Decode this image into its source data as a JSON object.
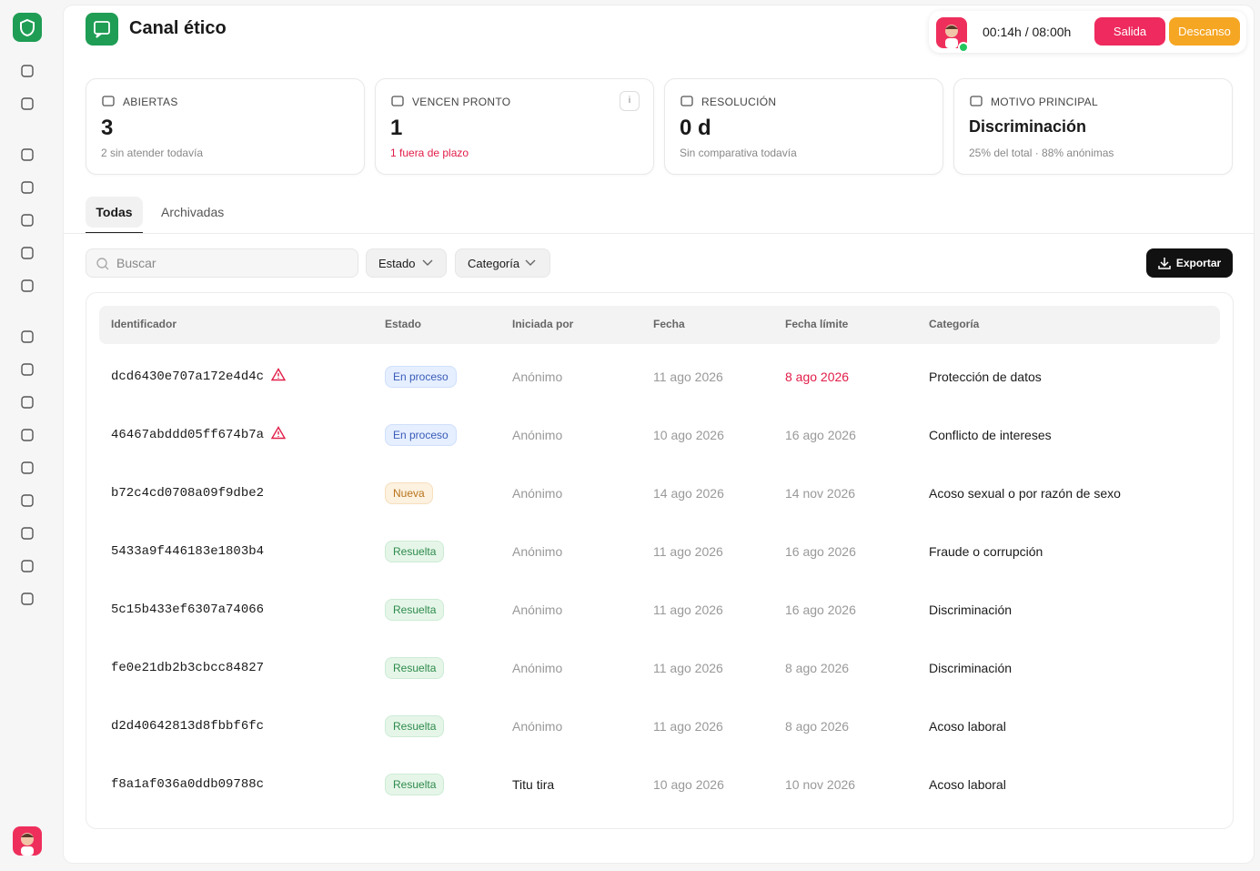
{
  "header": {
    "title": "Canal ético",
    "timer": "00:14h / 08:00h",
    "exit_button": "Salida",
    "break_button": "Descanso"
  },
  "stats": [
    {
      "label": "ABIERTAS",
      "value": "3",
      "note": "2 sin atender todavía"
    },
    {
      "label": "VENCEN PRONTO",
      "value": "1",
      "note": "1 fuera de plazo",
      "info": "i"
    },
    {
      "label": "RESOLUCIÓN",
      "value": "0 d",
      "note": "Sin comparativa todavía"
    },
    {
      "label": "MOTIVO PRINCIPAL",
      "value": "Discriminación",
      "note": "25% del total · 88% anónimas"
    }
  ],
  "tabs": [
    "Todas",
    "Archivadas"
  ],
  "filters": {
    "search_placeholder": "Buscar",
    "status": "Estado",
    "category": "Categoría",
    "export": "Exportar"
  },
  "table": {
    "columns": [
      "Identificador",
      "Estado",
      "Iniciada por",
      "Fecha",
      "Fecha límite",
      "Categoría"
    ],
    "rows": [
      {
        "id": "dcd6430e707a172e4d4c",
        "flagged": true,
        "status": "En proceso",
        "status_color": "blue",
        "initiated_by": "Anónimo",
        "date": "11 ago 2026",
        "deadline": "8 ago 2026",
        "deadline_overdue": true,
        "category": "Protección de datos"
      },
      {
        "id": "46467abddd05ff674b7a",
        "flagged": true,
        "status": "En proceso",
        "status_color": "blue",
        "initiated_by": "Anónimo",
        "date": "10 ago 2026",
        "deadline": "16 ago 2026",
        "deadline_overdue": false,
        "category": "Conflicto de intereses"
      },
      {
        "id": "b72c4cd0708a09f9dbe2",
        "flagged": false,
        "status": "Nueva",
        "status_color": "amber",
        "initiated_by": "Anónimo",
        "date": "14 ago 2026",
        "deadline": "14 nov 2026",
        "deadline_overdue": false,
        "category": "Acoso sexual o por razón de sexo"
      },
      {
        "id": "5433a9f446183e1803b4",
        "flagged": false,
        "status": "Resuelta",
        "status_color": "green",
        "initiated_by": "Anónimo",
        "date": "11 ago 2026",
        "deadline": "16 ago 2026",
        "deadline_overdue": false,
        "category": "Fraude o corrupción"
      },
      {
        "id": "5c15b433ef6307a74066",
        "flagged": false,
        "status": "Resuelta",
        "status_color": "green",
        "initiated_by": "Anónimo",
        "date": "11 ago 2026",
        "deadline": "16 ago 2026",
        "deadline_overdue": false,
        "category": "Discriminación"
      },
      {
        "id": "fe0e21db2b3cbcc84827",
        "flagged": false,
        "status": "Resuelta",
        "status_color": "green",
        "initiated_by": "Anónimo",
        "date": "11 ago 2026",
        "deadline": "8 ago 2026",
        "deadline_overdue": false,
        "category": "Discriminación"
      },
      {
        "id": "d2d40642813d8fbbf6fc",
        "flagged": false,
        "status": "Resuelta",
        "status_color": "green",
        "initiated_by": "Anónimo",
        "date": "11 ago 2026",
        "deadline": "8 ago 2026",
        "deadline_overdue": false,
        "category": "Acoso laboral"
      },
      {
        "id": "f8a1af036a0ddb09788c",
        "flagged": false,
        "status": "Resuelta",
        "status_color": "green",
        "initiated_by": "Titu tira",
        "date": "10 ago 2026",
        "deadline": "10 nov 2026",
        "deadline_overdue": false,
        "category": "Acoso laboral"
      }
    ]
  }
}
